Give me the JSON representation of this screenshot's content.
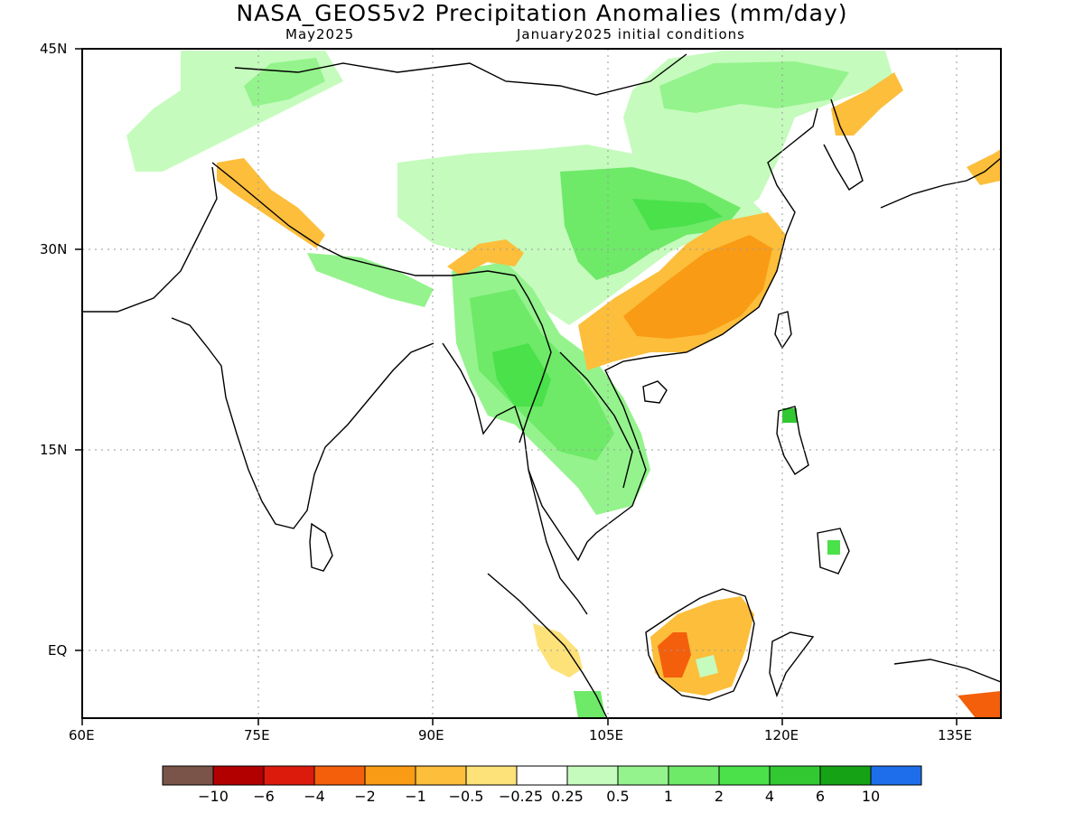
{
  "title": "NASA_GEOS5v2 Precipitation Anomalies (mm/day)",
  "subtitle_left": "May2025",
  "subtitle_right": "January2025 initial conditions",
  "axes": {
    "lon_ticks": [
      "60E",
      "75E",
      "90E",
      "105E",
      "120E",
      "135E"
    ],
    "lat_ticks": [
      "45N",
      "30N",
      "15N",
      "EQ"
    ]
  },
  "legend": {
    "colors": [
      "#7a5448",
      "#b20000",
      "#dc1b0d",
      "#f45f0c",
      "#f99b14",
      "#fcbe3b",
      "#fde27a",
      "#ffffff",
      "#c5fbbd",
      "#94f38c",
      "#6ee968",
      "#4ae14a",
      "#32c832",
      "#15a215",
      "#1e6eeb"
    ],
    "labels": [
      "−10",
      "−6",
      "−4",
      "−2",
      "−1",
      "−0.5",
      "−0.25",
      "0.25",
      "0.5",
      "1",
      "2",
      "4",
      "6",
      "10"
    ]
  },
  "colors": {
    "dry_strong": "#f45f0c",
    "dry": "#f99b14",
    "dry_weak": "#fde27a",
    "wet_weak": "#c5fbbd",
    "wet": "#6ee968",
    "wet_strong": "#32c832"
  }
}
